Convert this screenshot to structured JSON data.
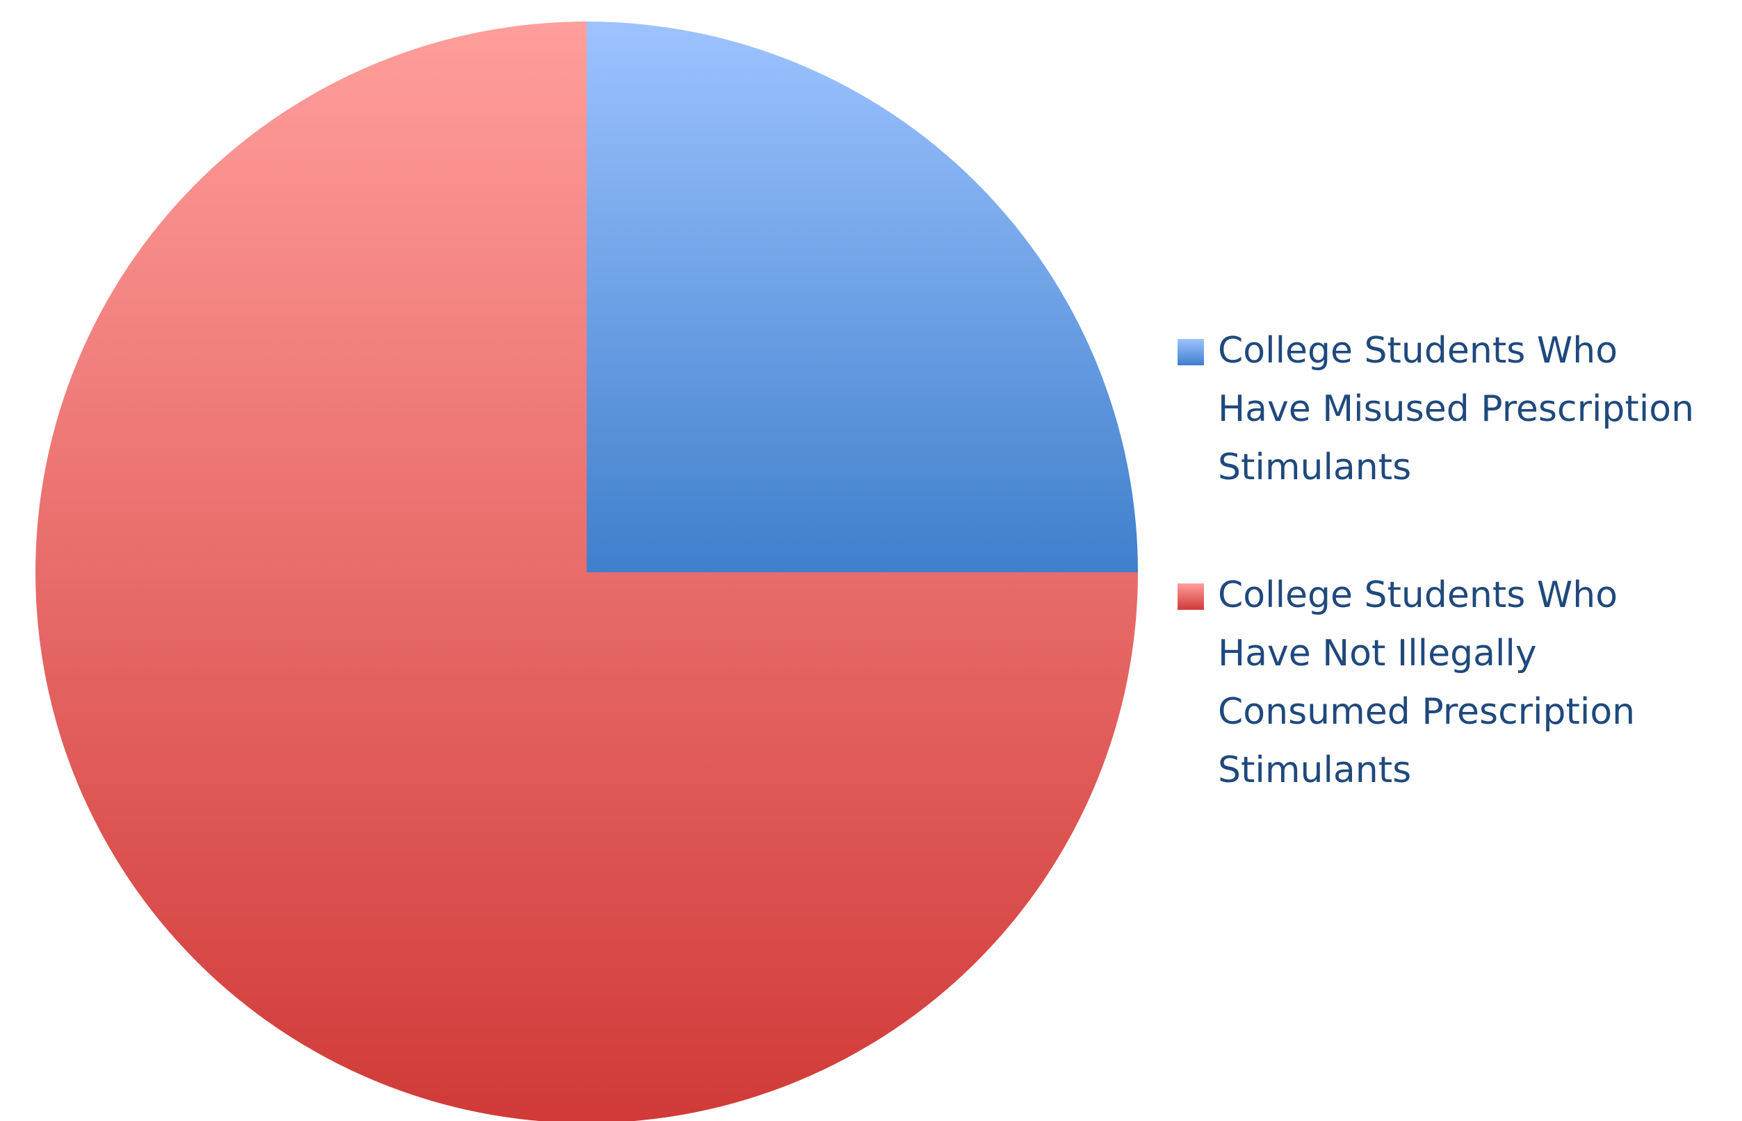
{
  "chart_data": {
    "type": "pie",
    "title": "",
    "start_angle_deg": 0,
    "direction": "clockwise",
    "legend_position": "right",
    "slices": [
      {
        "label": "College Students Who Have Misused Prescription Stimulants",
        "legend_lines": [
          "College Students Who",
          "Have Misused Prescription",
          "Stimulants"
        ],
        "value": 25,
        "color_top": "#9dc3ff",
        "color_bottom": "#3f7fcc",
        "legend_color": "#5a8fdc"
      },
      {
        "label": "College Students Who Have Not Illegally Consumed Prescription Stimulants",
        "legend_lines": [
          "College Students Who",
          "Have Not Illegally",
          "Consumed Prescription",
          "Stimulants"
        ],
        "value": 75,
        "color_top": "#ff9e9c",
        "color_bottom": "#d03a38",
        "legend_color": "#e0605e"
      }
    ],
    "legend_text_color": "#1f497d"
  }
}
